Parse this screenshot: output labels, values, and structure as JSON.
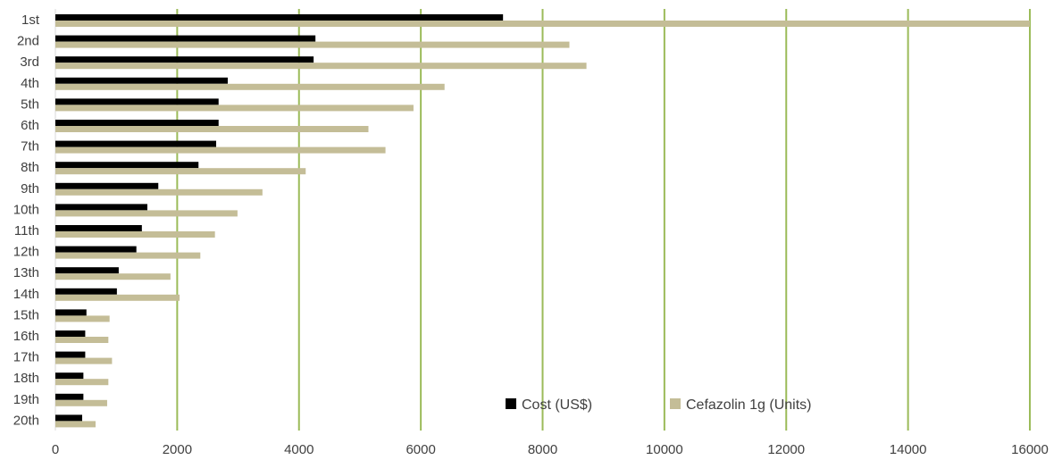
{
  "chart_data": {
    "type": "bar",
    "orientation": "horizontal",
    "categories": [
      "1st",
      "2nd",
      "3rd",
      "4th",
      "5th",
      "6th",
      "7th",
      "8th",
      "9th",
      "10th",
      "11th",
      "12th",
      "13th",
      "14th",
      "15th",
      "16th",
      "17th",
      "18th",
      "19th",
      "20th"
    ],
    "series": [
      {
        "name": "Cost (US$)",
        "color": "#000000",
        "values": [
          7350,
          4270,
          4240,
          2830,
          2680,
          2680,
          2640,
          2350,
          1690,
          1510,
          1420,
          1330,
          1040,
          1010,
          510,
          490,
          490,
          460,
          460,
          440
        ]
      },
      {
        "name": "Cefazolin 1g (Units)",
        "color": "#c4bd97",
        "values": [
          16000,
          8440,
          8720,
          6390,
          5880,
          5140,
          5420,
          4110,
          3400,
          2990,
          2620,
          2380,
          1890,
          2040,
          890,
          870,
          930,
          870,
          850,
          660
        ]
      }
    ],
    "xlim": [
      0,
      16000
    ],
    "x_ticks": [
      "0",
      "2000",
      "4000",
      "6000",
      "8000",
      "10000",
      "12000",
      "14000",
      "16000"
    ],
    "grid": "vertical",
    "grid_color": "#9bbb59",
    "legend": {
      "position": "bottom-right-inside"
    }
  }
}
